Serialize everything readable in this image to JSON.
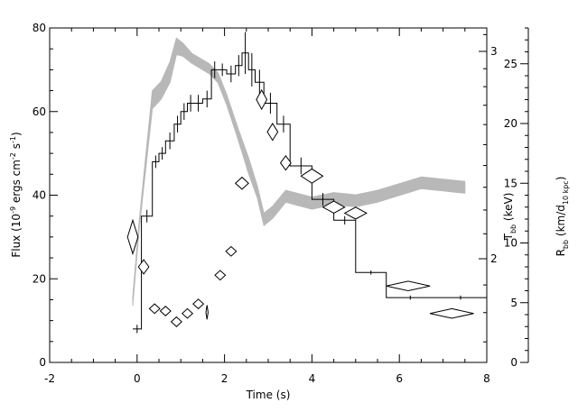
{
  "chart_data": {
    "type": "line",
    "title": "",
    "xlabel": "Time (s)",
    "xlim": [
      -2,
      8
    ],
    "x_ticks": [
      "-2",
      "0",
      "2",
      "4",
      "6",
      "8"
    ],
    "left_axis": {
      "label_main": "Flux (10",
      "label_exp1": "-9",
      "label_mid": " ergs cm",
      "label_exp2": "-2",
      "label_s": " s",
      "label_exp3": "-1",
      "label_end": ")",
      "ylim": [
        0,
        80
      ],
      "ticks": [
        "0",
        "20",
        "40",
        "60",
        "80"
      ]
    },
    "temp_axis": {
      "label_main": "T",
      "label_sub": "bb",
      "label_unit": " (keV)",
      "scale": "log",
      "ticks": [
        "2",
        "3"
      ]
    },
    "radius_axis": {
      "label_main": "R",
      "label_sub1": "bb",
      "label_mid": " (km/d",
      "label_sub2": "10 kpc",
      "label_end": ")",
      "ylim": [
        0,
        28
      ],
      "ticks": [
        "0",
        "5",
        "10",
        "15",
        "20",
        "25"
      ]
    },
    "series": [
      {
        "kind": "flux-step",
        "color": "#000000",
        "x_edges": [
          -0.1,
          0.1,
          0.35,
          0.5,
          0.65,
          0.85,
          1.0,
          1.15,
          1.3,
          1.5,
          1.7,
          1.85,
          2.05,
          2.25,
          2.4,
          2.55,
          2.7,
          2.9,
          3.2,
          3.5,
          4.0,
          4.5,
          5.0,
          5.7,
          6.8,
          8.0
        ],
        "values": [
          8,
          35,
          48,
          50,
          53,
          57,
          60,
          62,
          62,
          63,
          70,
          70,
          69,
          71,
          74,
          70,
          67,
          62,
          57,
          47,
          39,
          34,
          21.5,
          15.5,
          15.5
        ],
        "errors": [
          1,
          1.5,
          1.5,
          1.5,
          2,
          2,
          2,
          2,
          2,
          2,
          2,
          1.5,
          2,
          2.5,
          5,
          4,
          3,
          2.5,
          2,
          2,
          1.5,
          1,
          0.5,
          0.5,
          0.5
        ]
      },
      {
        "kind": "temperature-band",
        "color": "#b8b8b8",
        "x": [
          -0.1,
          0.05,
          0.35,
          0.55,
          0.75,
          0.9,
          1.05,
          1.25,
          1.45,
          1.65,
          1.85,
          2.05,
          2.3,
          2.55,
          2.75,
          2.9,
          3.1,
          3.4,
          3.6,
          4.0,
          4.5,
          5.0,
          5.5,
          6.0,
          6.5,
          7.0,
          7.5
        ],
        "y": [
          1.84,
          2.14,
          2.73,
          2.78,
          2.88,
          3.03,
          3.01,
          2.96,
          2.93,
          2.9,
          2.85,
          2.73,
          2.56,
          2.4,
          2.28,
          2.16,
          2.19,
          2.26,
          2.25,
          2.23,
          2.25,
          2.24,
          2.26,
          2.29,
          2.32,
          2.31,
          2.3
        ],
        "half_width": [
          0.01,
          0.01,
          0.04,
          0.04,
          0.05,
          0.04,
          0.03,
          0.02,
          0.02,
          0.02,
          0.02,
          0.02,
          0.02,
          0.03,
          0.02,
          0.02,
          0.02,
          0.02,
          0.02,
          0.02,
          0.02,
          0.02,
          0.02,
          0.02,
          0.02,
          0.02,
          0.02
        ]
      },
      {
        "kind": "radius-diamonds",
        "color": "#000000",
        "points": [
          {
            "x": -0.1,
            "y": 10.5,
            "dx": 0.12,
            "dy": 1.4
          },
          {
            "x": 0.15,
            "y": 8.0,
            "dx": 0.12,
            "dy": 0.6
          },
          {
            "x": 0.4,
            "y": 4.5,
            "dx": 0.12,
            "dy": 0.4
          },
          {
            "x": 0.65,
            "y": 4.3,
            "dx": 0.12,
            "dy": 0.4
          },
          {
            "x": 0.9,
            "y": 3.4,
            "dx": 0.12,
            "dy": 0.4
          },
          {
            "x": 1.15,
            "y": 4.1,
            "dx": 0.12,
            "dy": 0.4
          },
          {
            "x": 1.4,
            "y": 4.9,
            "dx": 0.12,
            "dy": 0.4
          },
          {
            "x": 1.6,
            "y": 4.2,
            "dx": 0.02,
            "dy": 0.6
          },
          {
            "x": 1.9,
            "y": 7.3,
            "dx": 0.12,
            "dy": 0.4
          },
          {
            "x": 2.15,
            "y": 9.3,
            "dx": 0.12,
            "dy": 0.4
          },
          {
            "x": 2.4,
            "y": 15.0,
            "dx": 0.15,
            "dy": 0.5
          },
          {
            "x": 2.85,
            "y": 22.0,
            "dx": 0.12,
            "dy": 0.8
          },
          {
            "x": 3.1,
            "y": 19.3,
            "dx": 0.12,
            "dy": 0.7
          },
          {
            "x": 3.4,
            "y": 16.7,
            "dx": 0.12,
            "dy": 0.6
          },
          {
            "x": 4.0,
            "y": 15.6,
            "dx": 0.25,
            "dy": 0.6
          },
          {
            "x": 4.5,
            "y": 13.0,
            "dx": 0.25,
            "dy": 0.5
          },
          {
            "x": 5.0,
            "y": 12.5,
            "dx": 0.25,
            "dy": 0.5
          },
          {
            "x": 6.2,
            "y": 6.4,
            "dx": 0.5,
            "dy": 0.4
          },
          {
            "x": 7.2,
            "y": 4.1,
            "dx": 0.5,
            "dy": 0.4
          }
        ]
      }
    ],
    "grid": false,
    "legend": "none"
  }
}
